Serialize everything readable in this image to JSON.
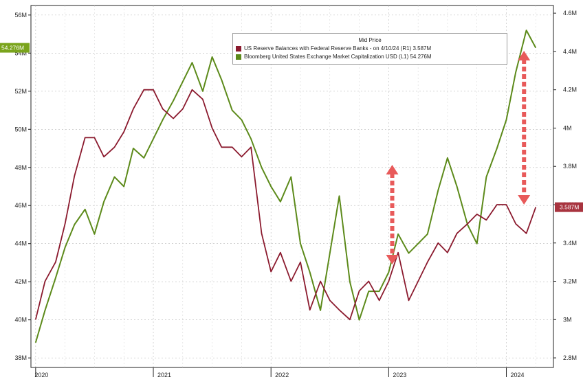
{
  "chart_data": {
    "type": "line",
    "legend": {
      "title": "Mid Price",
      "entries": [
        "US Reserve Balances with Federal Reserve Banks -  on 4/10/24  (R1)  3.587M",
        "Bloomberg United States Exchange Market Capitalization USD  (L1)   54.276M"
      ]
    },
    "x_labels": [
      "2020",
      "2021",
      "2022",
      "2023",
      "2024"
    ],
    "y_left": {
      "ticks": [
        "38M",
        "40M",
        "42M",
        "44M",
        "46M",
        "48M",
        "50M",
        "52M",
        "54M",
        "56M"
      ],
      "range": [
        37.5,
        56.5
      ]
    },
    "y_right": {
      "ticks": [
        "2.8M",
        "3M",
        "3.2M",
        "3.4M",
        "3.6M",
        "3.8M",
        "4M",
        "4.2M",
        "4.4M",
        "4.6M"
      ],
      "range": [
        2.75,
        4.64
      ]
    },
    "grid": true,
    "tags": {
      "left": "54.276M",
      "right": "3.587M"
    },
    "colors": {
      "market_cap": "#5c8a1a",
      "reserves": "#8b1a2e",
      "tag_left": "#7aa41c",
      "tag_right": "#a8343f",
      "arrow": "#e85a5a"
    },
    "series": [
      {
        "name": "Bloomberg United States Exchange Market Capitalization USD",
        "axis": "left",
        "x": [
          2020.0,
          2020.08,
          2020.17,
          2020.25,
          2020.33,
          2020.42,
          2020.5,
          2020.58,
          2020.67,
          2020.75,
          2020.83,
          2020.92,
          2021.0,
          2021.08,
          2021.17,
          2021.25,
          2021.33,
          2021.42,
          2021.5,
          2021.58,
          2021.67,
          2021.75,
          2021.83,
          2021.92,
          2022.0,
          2022.08,
          2022.17,
          2022.25,
          2022.33,
          2022.42,
          2022.5,
          2022.58,
          2022.67,
          2022.75,
          2022.83,
          2022.92,
          2023.0,
          2023.08,
          2023.17,
          2023.25,
          2023.33,
          2023.42,
          2023.5,
          2023.58,
          2023.67,
          2023.75,
          2023.83,
          2023.92,
          2024.0,
          2024.08,
          2024.17,
          2024.25
        ],
        "y": [
          38.8,
          40.5,
          42.2,
          43.8,
          45.0,
          45.8,
          44.5,
          46.2,
          47.5,
          47.0,
          49.0,
          48.5,
          49.5,
          50.5,
          51.5,
          52.5,
          53.5,
          52.0,
          53.8,
          52.6,
          51.0,
          50.5,
          49.5,
          48.0,
          47.0,
          46.2,
          47.5,
          44.0,
          42.5,
          40.5,
          43.5,
          46.5,
          42.0,
          40.0,
          41.5,
          41.5,
          42.5,
          44.5,
          43.5,
          44.0,
          44.5,
          46.8,
          48.5,
          47.0,
          45.0,
          44.0,
          47.5,
          49.0,
          50.5,
          53.0,
          55.2,
          54.28
        ]
      },
      {
        "name": "US Reserve Balances with Federal Reserve Banks",
        "axis": "right",
        "x": [
          2020.0,
          2020.08,
          2020.17,
          2020.25,
          2020.33,
          2020.42,
          2020.5,
          2020.58,
          2020.67,
          2020.75,
          2020.83,
          2020.92,
          2021.0,
          2021.08,
          2021.17,
          2021.25,
          2021.33,
          2021.42,
          2021.5,
          2021.58,
          2021.67,
          2021.75,
          2021.83,
          2021.92,
          2022.0,
          2022.08,
          2022.17,
          2022.25,
          2022.33,
          2022.42,
          2022.5,
          2022.58,
          2022.67,
          2022.75,
          2022.83,
          2022.92,
          2023.0,
          2023.08,
          2023.17,
          2023.25,
          2023.33,
          2023.42,
          2023.5,
          2023.58,
          2023.67,
          2023.75,
          2023.83,
          2023.92,
          2024.0,
          2024.08,
          2024.17,
          2024.25
        ],
        "y": [
          3.0,
          3.2,
          3.3,
          3.5,
          3.75,
          3.95,
          3.95,
          3.85,
          3.9,
          3.98,
          4.1,
          4.2,
          4.2,
          4.1,
          4.05,
          4.1,
          4.2,
          4.15,
          4.0,
          3.9,
          3.9,
          3.85,
          3.9,
          3.45,
          3.25,
          3.35,
          3.2,
          3.3,
          3.05,
          3.2,
          3.1,
          3.05,
          3.0,
          3.15,
          3.2,
          3.1,
          3.2,
          3.35,
          3.1,
          3.2,
          3.3,
          3.4,
          3.35,
          3.45,
          3.5,
          3.55,
          3.52,
          3.6,
          3.6,
          3.5,
          3.45,
          3.587
        ]
      }
    ]
  }
}
